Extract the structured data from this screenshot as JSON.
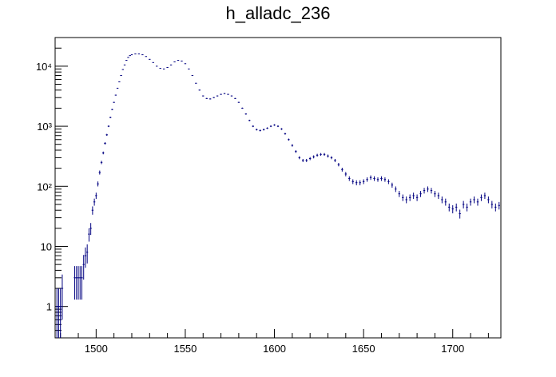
{
  "chart_data": {
    "type": "scatter",
    "title": "h_alladc_236",
    "xlabel": "",
    "ylabel": "",
    "xlim": [
      1477,
      1727
    ],
    "ylim": [
      0.3,
      30000
    ],
    "y_scale": "log",
    "grid": false,
    "legend": "none",
    "x_ticks": [
      1500,
      1550,
      1600,
      1650,
      1700
    ],
    "x_tick_labels": [
      "1500",
      "1550",
      "1600",
      "1650",
      "1700"
    ],
    "y_ticks": [
      1,
      10,
      100,
      1000,
      10000
    ],
    "y_tick_labels": [
      "1",
      "10",
      "10²",
      "10³",
      "10⁴"
    ],
    "marker_color": "#000080",
    "series": [
      {
        "values": [
          [
            1478,
            1,
            1
          ],
          [
            1479,
            1,
            1
          ],
          [
            1480,
            1,
            1
          ],
          [
            1481,
            2,
            1.4
          ],
          [
            1488,
            3,
            1.7
          ],
          [
            1489,
            3,
            1.7
          ],
          [
            1490,
            3,
            1.7
          ],
          [
            1491,
            3,
            1.7
          ],
          [
            1492,
            3,
            1.7
          ],
          [
            1493,
            5,
            2.2
          ],
          [
            1494,
            7,
            2.6
          ],
          [
            1495,
            8,
            2.8
          ],
          [
            1496,
            16,
            4
          ],
          [
            1497,
            20,
            4.5
          ],
          [
            1498,
            40,
            6.3
          ],
          [
            1499,
            55,
            7.4
          ],
          [
            1500,
            70,
            8.4
          ],
          [
            1501,
            110,
            10.5
          ],
          [
            1502,
            170,
            13
          ],
          [
            1503,
            250,
            15.8
          ],
          [
            1504,
            360,
            19
          ],
          [
            1505,
            520,
            23
          ],
          [
            1506,
            720,
            27
          ],
          [
            1507,
            1000,
            32
          ],
          [
            1508,
            1400,
            37
          ],
          [
            1509,
            1900,
            44
          ],
          [
            1510,
            2500,
            50
          ],
          [
            1511,
            3300,
            57
          ],
          [
            1512,
            4300,
            66
          ],
          [
            1513,
            5500,
            74
          ],
          [
            1514,
            7000,
            84
          ],
          [
            1515,
            8800,
            94
          ],
          [
            1516,
            10500,
            102
          ],
          [
            1517,
            12500,
            112
          ],
          [
            1518,
            14000,
            118
          ],
          [
            1519,
            15000,
            122
          ],
          [
            1520,
            15500,
            124
          ],
          [
            1522,
            16000,
            126
          ],
          [
            1524,
            16000,
            126
          ],
          [
            1526,
            15500,
            124
          ],
          [
            1528,
            14500,
            120
          ],
          [
            1530,
            13000,
            114
          ],
          [
            1532,
            11500,
            107
          ],
          [
            1534,
            10000,
            100
          ],
          [
            1536,
            9200,
            96
          ],
          [
            1538,
            9000,
            95
          ],
          [
            1540,
            9500,
            97
          ],
          [
            1542,
            10500,
            102
          ],
          [
            1544,
            11800,
            109
          ],
          [
            1546,
            12500,
            112
          ],
          [
            1548,
            12200,
            110
          ],
          [
            1550,
            11000,
            105
          ],
          [
            1552,
            9000,
            95
          ],
          [
            1554,
            7000,
            84
          ],
          [
            1556,
            5200,
            72
          ],
          [
            1558,
            4000,
            63
          ],
          [
            1560,
            3200,
            57
          ],
          [
            1562,
            2900,
            54
          ],
          [
            1564,
            2850,
            53
          ],
          [
            1566,
            3000,
            55
          ],
          [
            1568,
            3200,
            57
          ],
          [
            1570,
            3400,
            58
          ],
          [
            1572,
            3500,
            59
          ],
          [
            1574,
            3400,
            58
          ],
          [
            1576,
            3200,
            57
          ],
          [
            1578,
            2900,
            54
          ],
          [
            1580,
            2500,
            50
          ],
          [
            1582,
            2000,
            45
          ],
          [
            1584,
            1600,
            40
          ],
          [
            1586,
            1250,
            35
          ],
          [
            1588,
            1000,
            32
          ],
          [
            1590,
            880,
            30
          ],
          [
            1592,
            850,
            29
          ],
          [
            1594,
            880,
            30
          ],
          [
            1596,
            930,
            30
          ],
          [
            1598,
            1000,
            32
          ],
          [
            1600,
            1050,
            32
          ],
          [
            1602,
            1000,
            32
          ],
          [
            1604,
            900,
            30
          ],
          [
            1606,
            750,
            27
          ],
          [
            1608,
            600,
            24
          ],
          [
            1610,
            480,
            22
          ],
          [
            1612,
            380,
            19
          ],
          [
            1614,
            300,
            17
          ],
          [
            1616,
            270,
            16
          ],
          [
            1618,
            270,
            16
          ],
          [
            1620,
            290,
            17
          ],
          [
            1622,
            310,
            18
          ],
          [
            1624,
            330,
            18
          ],
          [
            1626,
            340,
            18
          ],
          [
            1628,
            340,
            18
          ],
          [
            1630,
            320,
            18
          ],
          [
            1632,
            300,
            17
          ],
          [
            1634,
            270,
            16
          ],
          [
            1636,
            230,
            15
          ],
          [
            1638,
            190,
            14
          ],
          [
            1640,
            160,
            13
          ],
          [
            1642,
            135,
            12
          ],
          [
            1644,
            120,
            11
          ],
          [
            1646,
            115,
            11
          ],
          [
            1648,
            115,
            11
          ],
          [
            1650,
            120,
            11
          ],
          [
            1652,
            130,
            11
          ],
          [
            1654,
            140,
            12
          ],
          [
            1656,
            135,
            12
          ],
          [
            1658,
            130,
            11
          ],
          [
            1660,
            135,
            12
          ],
          [
            1662,
            130,
            11
          ],
          [
            1664,
            120,
            11
          ],
          [
            1666,
            105,
            10
          ],
          [
            1668,
            90,
            9.5
          ],
          [
            1670,
            75,
            8.7
          ],
          [
            1672,
            65,
            8.1
          ],
          [
            1674,
            60,
            7.7
          ],
          [
            1676,
            65,
            8.1
          ],
          [
            1678,
            70,
            8.4
          ],
          [
            1680,
            65,
            8.1
          ],
          [
            1682,
            75,
            8.7
          ],
          [
            1684,
            85,
            9.2
          ],
          [
            1686,
            90,
            9.5
          ],
          [
            1688,
            85,
            9.2
          ],
          [
            1690,
            75,
            8.7
          ],
          [
            1692,
            70,
            8.4
          ],
          [
            1694,
            60,
            7.7
          ],
          [
            1696,
            55,
            7.4
          ],
          [
            1698,
            45,
            6.7
          ],
          [
            1700,
            42,
            6.5
          ],
          [
            1702,
            45,
            6.7
          ],
          [
            1704,
            35,
            5.9
          ],
          [
            1706,
            50,
            7.1
          ],
          [
            1708,
            45,
            6.7
          ],
          [
            1710,
            55,
            7.4
          ],
          [
            1712,
            60,
            7.7
          ],
          [
            1714,
            55,
            7.4
          ],
          [
            1716,
            65,
            8.1
          ],
          [
            1718,
            70,
            8.4
          ],
          [
            1720,
            60,
            7.7
          ],
          [
            1722,
            50,
            7.1
          ],
          [
            1724,
            45,
            6.7
          ],
          [
            1726,
            48,
            6.9
          ]
        ]
      }
    ]
  }
}
